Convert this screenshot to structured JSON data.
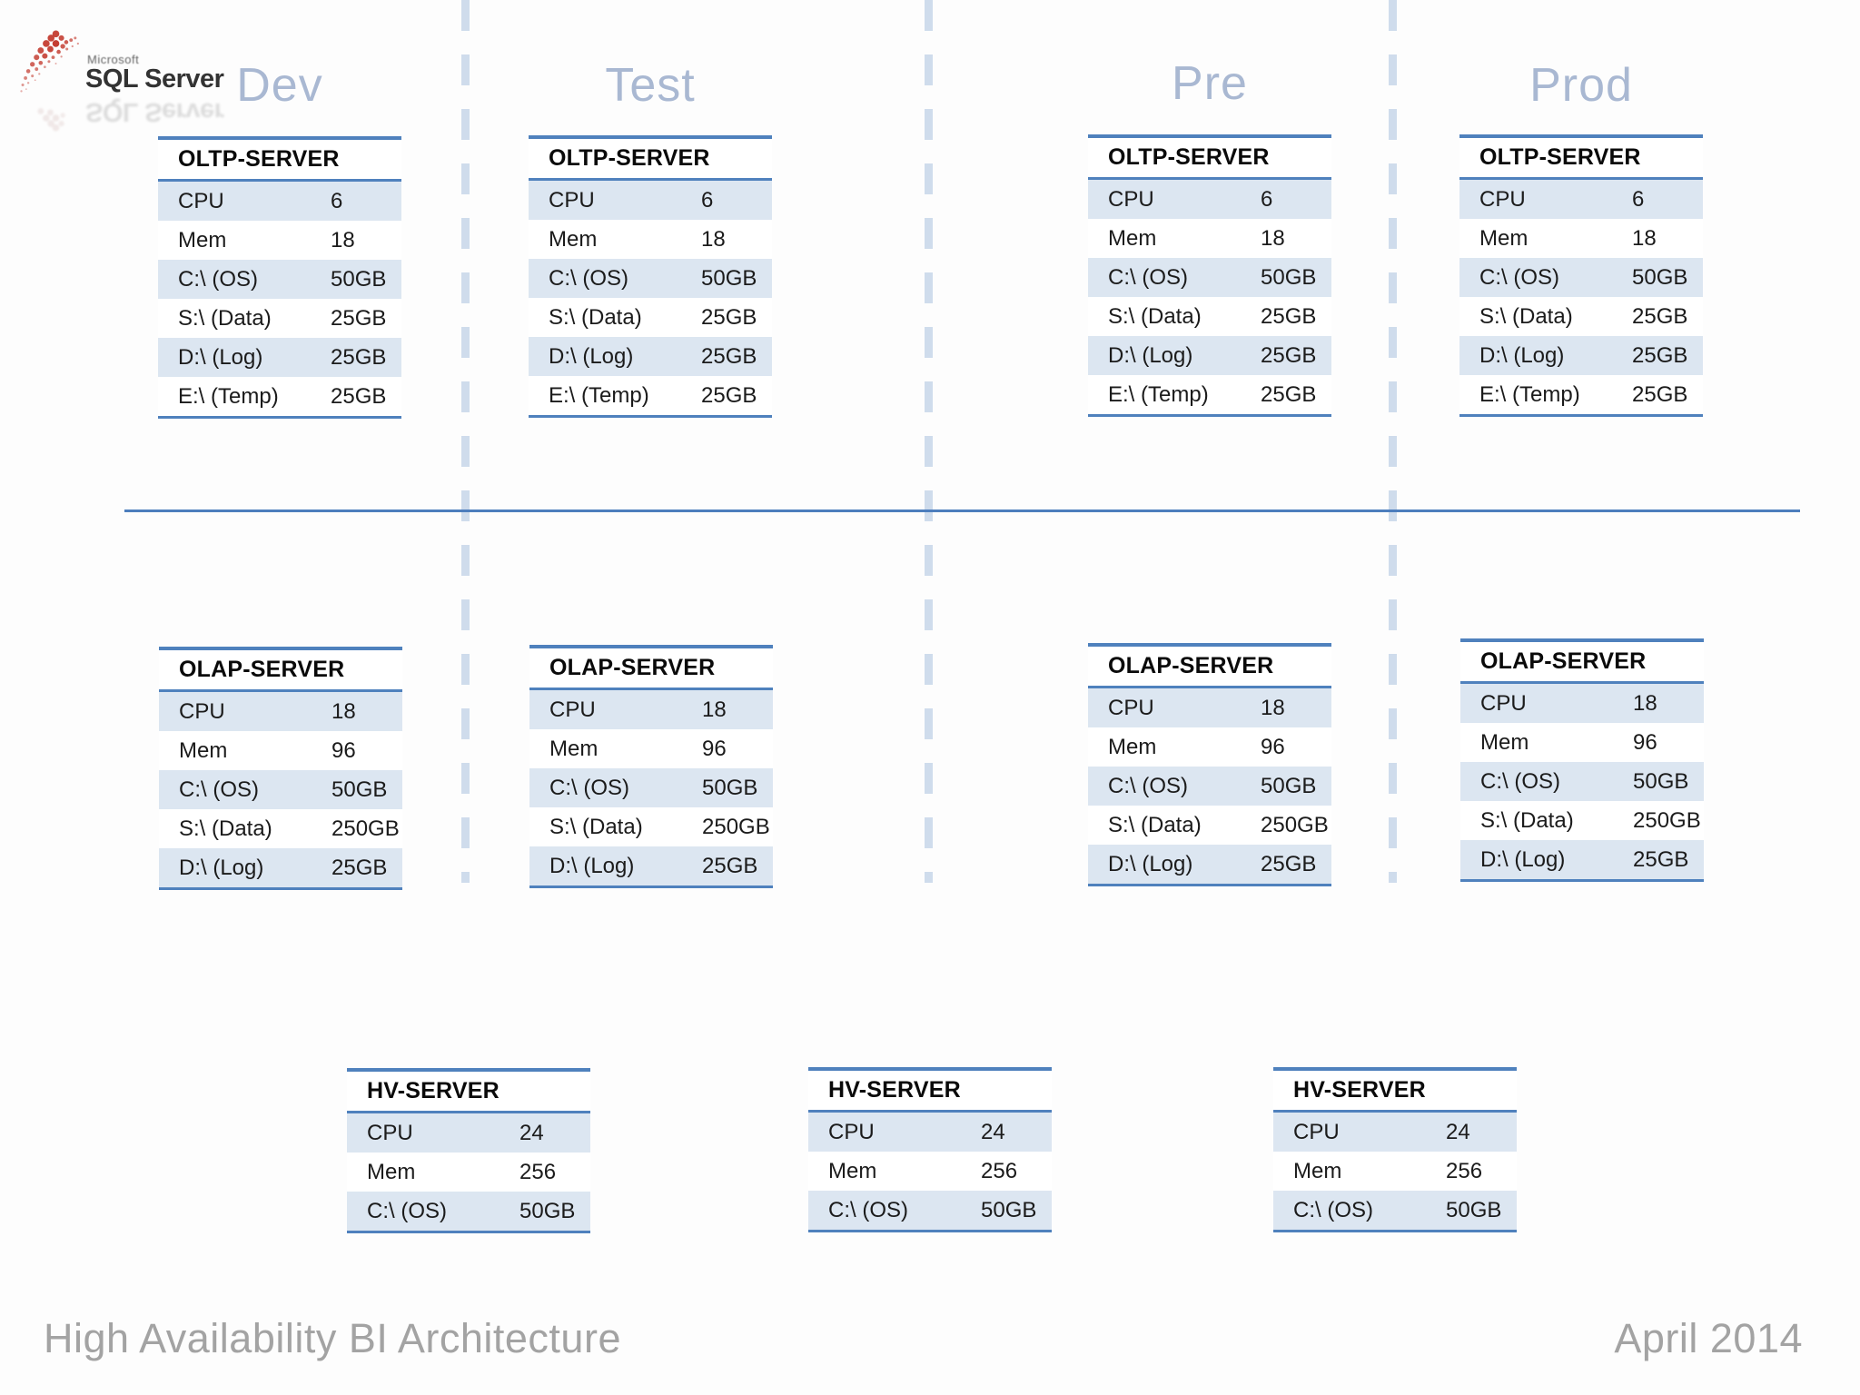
{
  "logo": {
    "microsoft": "Microsoft",
    "product": "SQL Server"
  },
  "footer": {
    "left": "High Availability BI Architecture",
    "right": "April 2014"
  },
  "colors": {
    "accent_blue": "#4f81bd",
    "row_alt_blue": "#dce6f1",
    "dash_blue": "#cfdcec",
    "heading_blue_gray": "#a9b8d2",
    "footer_gray": "#a3a3a3",
    "logo_splatter_red": "#c13327"
  },
  "environments": [
    {
      "name": "Dev",
      "oltp": {
        "title": "OLTP-SERVER",
        "rows": [
          {
            "label": "CPU",
            "value": "6"
          },
          {
            "label": "Mem",
            "value": "18"
          },
          {
            "label": "C:\\ (OS)",
            "value": "50GB"
          },
          {
            "label": "S:\\ (Data)",
            "value": "25GB"
          },
          {
            "label": "D:\\ (Log)",
            "value": "25GB"
          },
          {
            "label": "E:\\ (Temp)",
            "value": "25GB"
          }
        ]
      },
      "olap": {
        "title": "OLAP-SERVER",
        "rows": [
          {
            "label": "CPU",
            "value": "18"
          },
          {
            "label": "Mem",
            "value": "96"
          },
          {
            "label": "C:\\ (OS)",
            "value": "50GB"
          },
          {
            "label": "S:\\ (Data)",
            "value": "250GB"
          },
          {
            "label": "D:\\ (Log)",
            "value": "25GB"
          }
        ]
      }
    },
    {
      "name": "Test",
      "oltp": {
        "title": "OLTP-SERVER",
        "rows": [
          {
            "label": "CPU",
            "value": "6"
          },
          {
            "label": "Mem",
            "value": "18"
          },
          {
            "label": "C:\\ (OS)",
            "value": "50GB"
          },
          {
            "label": "S:\\ (Data)",
            "value": "25GB"
          },
          {
            "label": "D:\\ (Log)",
            "value": "25GB"
          },
          {
            "label": "E:\\ (Temp)",
            "value": "25GB"
          }
        ]
      },
      "olap": {
        "title": "OLAP-SERVER",
        "rows": [
          {
            "label": "CPU",
            "value": "18"
          },
          {
            "label": "Mem",
            "value": "96"
          },
          {
            "label": "C:\\ (OS)",
            "value": "50GB"
          },
          {
            "label": "S:\\ (Data)",
            "value": "250GB"
          },
          {
            "label": "D:\\ (Log)",
            "value": "25GB"
          }
        ]
      }
    },
    {
      "name": "Pre",
      "oltp": {
        "title": "OLTP-SERVER",
        "rows": [
          {
            "label": "CPU",
            "value": "6"
          },
          {
            "label": "Mem",
            "value": "18"
          },
          {
            "label": "C:\\ (OS)",
            "value": "50GB"
          },
          {
            "label": "S:\\ (Data)",
            "value": "25GB"
          },
          {
            "label": "D:\\ (Log)",
            "value": "25GB"
          },
          {
            "label": "E:\\ (Temp)",
            "value": "25GB"
          }
        ]
      },
      "olap": {
        "title": "OLAP-SERVER",
        "rows": [
          {
            "label": "CPU",
            "value": "18"
          },
          {
            "label": "Mem",
            "value": "96"
          },
          {
            "label": "C:\\ (OS)",
            "value": "50GB"
          },
          {
            "label": "S:\\ (Data)",
            "value": "250GB"
          },
          {
            "label": "D:\\ (Log)",
            "value": "25GB"
          }
        ]
      }
    },
    {
      "name": "Prod",
      "oltp": {
        "title": "OLTP-SERVER",
        "rows": [
          {
            "label": "CPU",
            "value": "6"
          },
          {
            "label": "Mem",
            "value": "18"
          },
          {
            "label": "C:\\ (OS)",
            "value": "50GB"
          },
          {
            "label": "S:\\ (Data)",
            "value": "25GB"
          },
          {
            "label": "D:\\ (Log)",
            "value": "25GB"
          },
          {
            "label": "E:\\ (Temp)",
            "value": "25GB"
          }
        ]
      },
      "olap": {
        "title": "OLAP-SERVER",
        "rows": [
          {
            "label": "CPU",
            "value": "18"
          },
          {
            "label": "Mem",
            "value": "96"
          },
          {
            "label": "C:\\ (OS)",
            "value": "50GB"
          },
          {
            "label": "S:\\ (Data)",
            "value": "250GB"
          },
          {
            "label": "D:\\ (Log)",
            "value": "25GB"
          }
        ]
      }
    }
  ],
  "hv_servers": [
    {
      "title": "HV-SERVER",
      "rows": [
        {
          "label": "CPU",
          "value": "24"
        },
        {
          "label": "Mem",
          "value": "256"
        },
        {
          "label": "C:\\ (OS)",
          "value": "50GB"
        }
      ]
    },
    {
      "title": "HV-SERVER",
      "rows": [
        {
          "label": "CPU",
          "value": "24"
        },
        {
          "label": "Mem",
          "value": "256"
        },
        {
          "label": "C:\\ (OS)",
          "value": "50GB"
        }
      ]
    },
    {
      "title": "HV-SERVER",
      "rows": [
        {
          "label": "CPU",
          "value": "24"
        },
        {
          "label": "Mem",
          "value": "256"
        },
        {
          "label": "C:\\ (OS)",
          "value": "50GB"
        }
      ]
    }
  ]
}
